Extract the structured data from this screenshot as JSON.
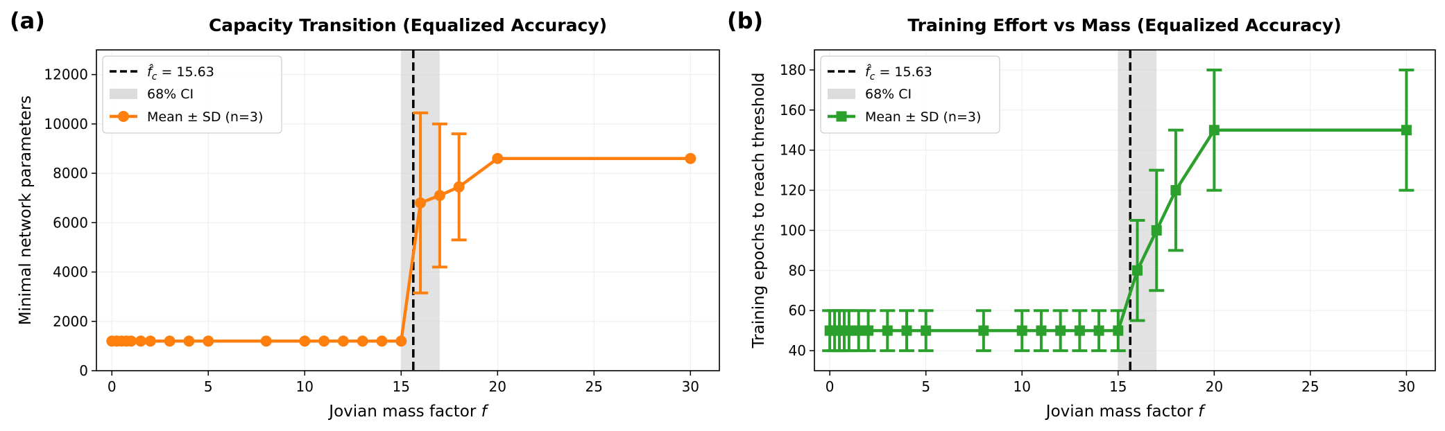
{
  "chart_data": [
    {
      "panel_letter": "(a)",
      "type": "line",
      "title": "Capacity Transition (Equalized Accuracy)",
      "xlabel": "Jovian mass factor f",
      "ylabel": "Minimal network parameters",
      "xlim": [
        -0.8,
        31.5
      ],
      "ylim": [
        0,
        13000
      ],
      "xticks": [
        0,
        5,
        10,
        15,
        20,
        25,
        30
      ],
      "yticks": [
        0,
        2000,
        4000,
        6000,
        8000,
        10000,
        12000
      ],
      "grid": true,
      "legend_position": "upper-left",
      "threshold": {
        "label": "f̂c = 15.63",
        "value": 15.63,
        "style": "dashed",
        "color": "#000000"
      },
      "ci_band": {
        "label": "68% CI",
        "range": [
          15.0,
          17.0
        ],
        "color": "#d3d3d3"
      },
      "series": [
        {
          "name": "Mean ± SD (n=3)",
          "color": "#ff7f0e",
          "marker": "circle",
          "x": [
            0,
            0.25,
            0.5,
            0.75,
            1.0,
            1.5,
            2,
            3,
            4,
            5,
            8,
            10,
            11,
            12,
            13,
            14,
            15,
            16,
            17,
            18,
            20,
            30
          ],
          "y": [
            1200,
            1200,
            1200,
            1200,
            1200,
            1200,
            1200,
            1200,
            1200,
            1200,
            1200,
            1200,
            1200,
            1200,
            1200,
            1200,
            1200,
            6800,
            7100,
            7450,
            8600,
            8600
          ],
          "sd": [
            0,
            0,
            0,
            0,
            0,
            0,
            0,
            0,
            0,
            0,
            0,
            0,
            0,
            0,
            0,
            0,
            0,
            3650,
            2900,
            2150,
            0,
            0
          ]
        }
      ]
    },
    {
      "panel_letter": "(b)",
      "type": "line",
      "title": "Training Effort vs Mass (Equalized Accuracy)",
      "xlabel": "Jovian mass factor f",
      "ylabel": "Training epochs to reach threshold",
      "xlim": [
        -0.8,
        31.5
      ],
      "ylim": [
        30,
        190
      ],
      "xticks": [
        0,
        5,
        10,
        15,
        20,
        25,
        30
      ],
      "yticks": [
        40,
        60,
        80,
        100,
        120,
        140,
        160,
        180
      ],
      "grid": true,
      "legend_position": "upper-left",
      "threshold": {
        "label": "f̂c = 15.63",
        "value": 15.63,
        "style": "dashed",
        "color": "#000000"
      },
      "ci_band": {
        "label": "68% CI",
        "range": [
          15.0,
          17.0
        ],
        "color": "#d3d3d3"
      },
      "series": [
        {
          "name": "Mean ± SD (n=3)",
          "color": "#2ca02c",
          "marker": "square",
          "x": [
            0,
            0.25,
            0.5,
            0.75,
            1.0,
            1.5,
            2,
            3,
            4,
            5,
            8,
            10,
            11,
            12,
            13,
            14,
            15,
            16,
            17,
            18,
            20,
            30
          ],
          "y": [
            50,
            50,
            50,
            50,
            50,
            50,
            50,
            50,
            50,
            50,
            50,
            50,
            50,
            50,
            50,
            50,
            50,
            80,
            100,
            120,
            150,
            150
          ],
          "sd": [
            10,
            10,
            10,
            10,
            10,
            10,
            10,
            10,
            10,
            10,
            10,
            10,
            10,
            10,
            10,
            10,
            10,
            25,
            30,
            30,
            30,
            30
          ]
        }
      ]
    }
  ]
}
